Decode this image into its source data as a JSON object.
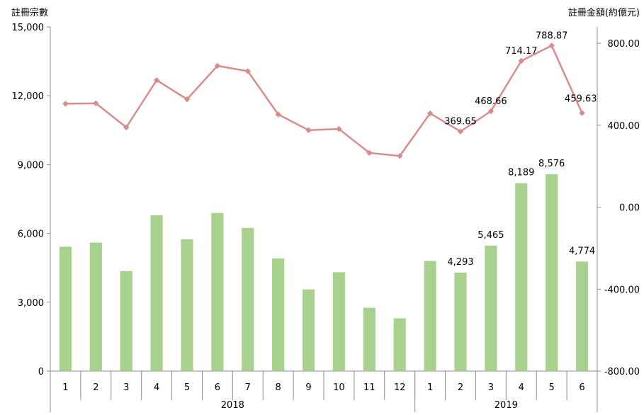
{
  "chart_data": {
    "type": "bar",
    "y_label_left": "註冊宗數",
    "y_label_right": "註冊金額(約億元)",
    "y_left_ticks": [
      "15,000",
      "12,000",
      "9,000",
      "6,000",
      "3,000",
      "0"
    ],
    "y_left_lim": [
      0,
      15000
    ],
    "y_right_ticks": [
      "800.00",
      "400.00",
      "0.00",
      "-400.00",
      "-800.00"
    ],
    "y_right_lim": [
      -800,
      880
    ],
    "categories": [
      "1",
      "2",
      "3",
      "4",
      "5",
      "6",
      "7",
      "8",
      "9",
      "10",
      "11",
      "12",
      "1",
      "2",
      "3",
      "4",
      "5",
      "6"
    ],
    "groups": [
      {
        "label": "2018",
        "count": 12
      },
      {
        "label": "2019",
        "count": 6
      }
    ],
    "series": [
      {
        "type": "bar",
        "axis": "left",
        "color": "#a9d18e",
        "values": [
          5420,
          5600,
          4360,
          6790,
          5740,
          6890,
          6240,
          4910,
          3560,
          4310,
          2760,
          2300,
          4800,
          4293,
          5465,
          8189,
          8576,
          4774
        ],
        "labels": [
          "",
          "",
          "",
          "",
          "",
          "",
          "",
          "",
          "",
          "",
          "",
          "",
          "",
          "4,293",
          "5,465",
          "8,189",
          "8,576",
          "4,774"
        ]
      },
      {
        "type": "line",
        "axis": "right",
        "color": "#d98c8c",
        "values": [
          505,
          507,
          390,
          620,
          527,
          690,
          664,
          453,
          376,
          382,
          265,
          250,
          458,
          369.65,
          468.66,
          714.17,
          788.87,
          459.63
        ],
        "labels": [
          "",
          "",
          "",
          "",
          "",
          "",
          "",
          "",
          "",
          "",
          "",
          "",
          "",
          "369.65",
          "468.66",
          "714.17",
          "788.87",
          "459.63"
        ]
      }
    ],
    "grid": false,
    "legend": "none"
  }
}
